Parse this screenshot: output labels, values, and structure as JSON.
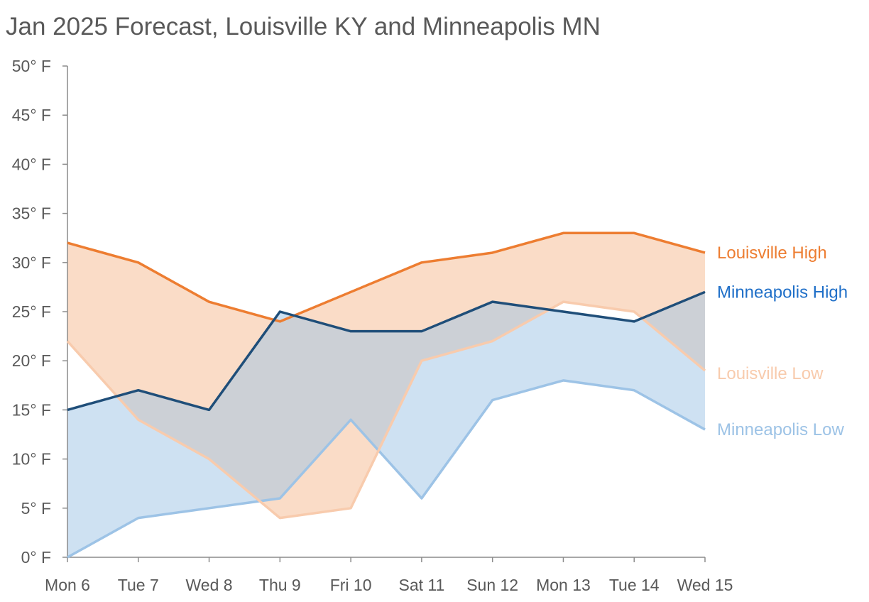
{
  "chart_data": {
    "type": "area",
    "title": "Jan 2025 Forecast, Louisville KY and Minneapolis MN",
    "xlabel": "",
    "ylabel": "",
    "categories": [
      "Mon 6",
      "Tue 7",
      "Wed 8",
      "Thu 9",
      "Fri 10",
      "Sat 11",
      "Sun 12",
      "Mon 13",
      "Tue 14",
      "Wed 15"
    ],
    "ylim": [
      0,
      50
    ],
    "yticks": [
      0,
      5,
      10,
      15,
      20,
      25,
      30,
      35,
      40,
      45,
      50
    ],
    "ytick_labels": [
      "0° F",
      "5° F",
      "10° F",
      "15° F",
      "20° F",
      "25° F",
      "30° F",
      "35° F",
      "40° F",
      "45° F",
      "50° F"
    ],
    "grid": false,
    "legend": "right (labels at line ends)",
    "series": [
      {
        "name": "Louisville High",
        "values": [
          32,
          30,
          26,
          24,
          27,
          30,
          31,
          33,
          33,
          31
        ],
        "color": "#ED7D31"
      },
      {
        "name": "Minneapolis High",
        "values": [
          15,
          17,
          15,
          25,
          23,
          23,
          26,
          25,
          24,
          27
        ],
        "color": "#1F4E79",
        "label_color": "#1F6FC8"
      },
      {
        "name": "Louisville Low",
        "values": [
          22,
          14,
          10,
          4,
          5,
          20,
          22,
          26,
          25,
          19
        ],
        "color": "#F8CBAD"
      },
      {
        "name": "Minneapolis Low",
        "values": [
          0,
          4,
          5,
          6,
          14,
          6,
          16,
          18,
          17,
          13
        ],
        "color": "#9DC3E6"
      }
    ],
    "bands": [
      {
        "between": [
          "Louisville High",
          "Louisville Low"
        ],
        "color": "#F4B183"
      },
      {
        "between": [
          "Minneapolis High",
          "Minneapolis Low"
        ],
        "color": "#9DC3E6"
      }
    ]
  }
}
